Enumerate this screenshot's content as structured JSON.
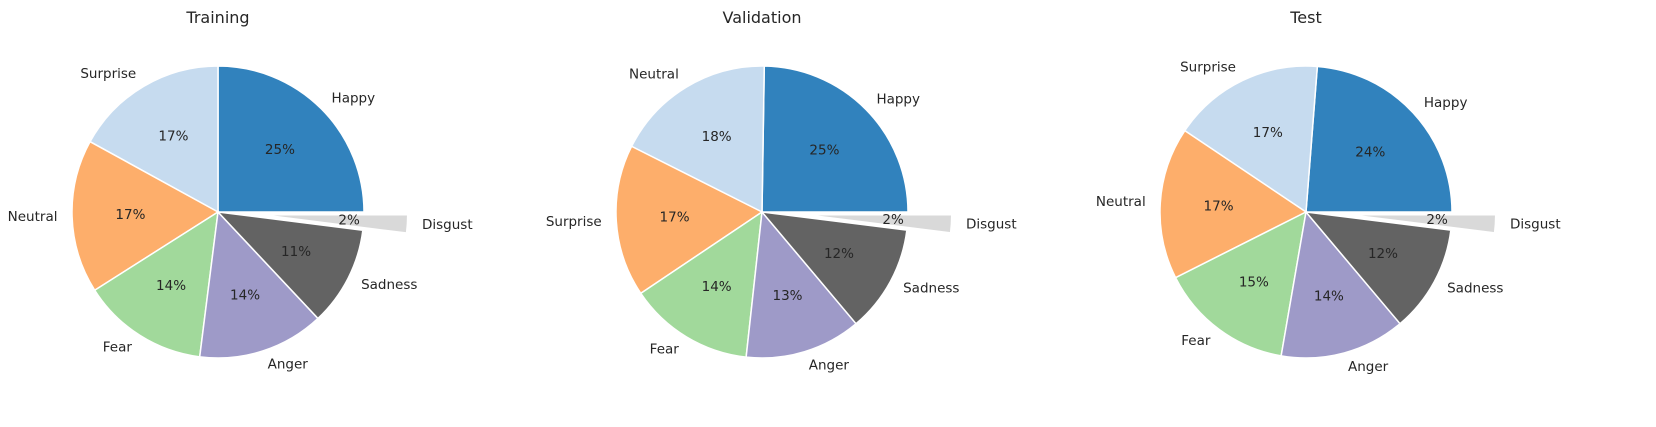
{
  "chart_data": [
    {
      "type": "pie",
      "title": "Training",
      "slices": [
        {
          "label": "Happy",
          "value": 25,
          "pct_label": "25%",
          "color": "#3182bd"
        },
        {
          "label": "Surprise",
          "value": 17,
          "pct_label": "17%",
          "color": "#c6dbef"
        },
        {
          "label": "Neutral",
          "value": 17,
          "pct_label": "17%",
          "color": "#fdae6b"
        },
        {
          "label": "Fear",
          "value": 14,
          "pct_label": "14%",
          "color": "#a1d99b"
        },
        {
          "label": "Anger",
          "value": 14,
          "pct_label": "14%",
          "color": "#9e9ac8"
        },
        {
          "label": "Sadness",
          "value": 11,
          "pct_label": "11%",
          "color": "#636363"
        },
        {
          "label": "Disgust",
          "value": 2,
          "pct_label": "2%",
          "color": "#d9d9d9",
          "exploded": true
        }
      ]
    },
    {
      "type": "pie",
      "title": "Validation",
      "slices": [
        {
          "label": "Happy",
          "value": 25,
          "pct_label": "25%",
          "color": "#3182bd"
        },
        {
          "label": "Neutral",
          "value": 18,
          "pct_label": "18%",
          "color": "#c6dbef"
        },
        {
          "label": "Surprise",
          "value": 17,
          "pct_label": "17%",
          "color": "#fdae6b"
        },
        {
          "label": "Fear",
          "value": 14,
          "pct_label": "14%",
          "color": "#a1d99b"
        },
        {
          "label": "Anger",
          "value": 13,
          "pct_label": "13%",
          "color": "#9e9ac8"
        },
        {
          "label": "Sadness",
          "value": 12,
          "pct_label": "12%",
          "color": "#636363"
        },
        {
          "label": "Disgust",
          "value": 2,
          "pct_label": "2%",
          "color": "#d9d9d9",
          "exploded": true
        }
      ]
    },
    {
      "type": "pie",
      "title": "Test",
      "slices": [
        {
          "label": "Happy",
          "value": 24,
          "pct_label": "24%",
          "color": "#3182bd"
        },
        {
          "label": "Surprise",
          "value": 17,
          "pct_label": "17%",
          "color": "#c6dbef"
        },
        {
          "label": "Neutral",
          "value": 17,
          "pct_label": "17%",
          "color": "#fdae6b"
        },
        {
          "label": "Fear",
          "value": 15,
          "pct_label": "15%",
          "color": "#a1d99b"
        },
        {
          "label": "Anger",
          "value": 14,
          "pct_label": "14%",
          "color": "#9e9ac8"
        },
        {
          "label": "Sadness",
          "value": 12,
          "pct_label": "12%",
          "color": "#636363"
        },
        {
          "label": "Disgust",
          "value": 2,
          "pct_label": "2%",
          "color": "#d9d9d9",
          "exploded": true
        }
      ]
    }
  ]
}
